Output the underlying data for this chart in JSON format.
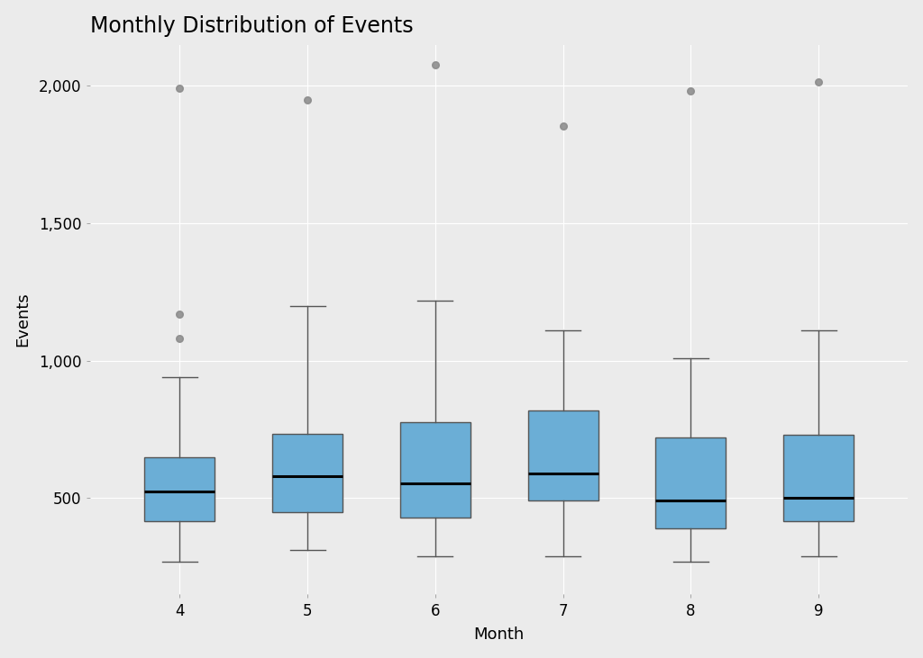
{
  "title": "Monthly Distribution of Events",
  "xlabel": "Month",
  "ylabel": "Events",
  "months": [
    4,
    5,
    6,
    7,
    8,
    9
  ],
  "box_stats": {
    "4": {
      "q1": 415,
      "median": 525,
      "q3": 650,
      "whisker_low": 270,
      "whisker_high": 940,
      "fliers": [
        1080,
        1170,
        1990
      ]
    },
    "5": {
      "q1": 450,
      "median": 580,
      "q3": 735,
      "whisker_low": 310,
      "whisker_high": 1200,
      "fliers": [
        1950
      ]
    },
    "6": {
      "q1": 430,
      "median": 555,
      "q3": 775,
      "whisker_low": 290,
      "whisker_high": 1220,
      "fliers": [
        2075
      ]
    },
    "7": {
      "q1": 490,
      "median": 590,
      "q3": 820,
      "whisker_low": 290,
      "whisker_high": 1110,
      "fliers": [
        1855
      ]
    },
    "8": {
      "q1": 390,
      "median": 490,
      "q3": 720,
      "whisker_low": 270,
      "whisker_high": 1010,
      "fliers": [
        1980
      ]
    },
    "9": {
      "q1": 415,
      "median": 500,
      "q3": 730,
      "whisker_low": 290,
      "whisker_high": 1110,
      "fliers": [
        2015
      ]
    }
  },
  "box_color": "#6BAED6",
  "box_edge_color": "#555555",
  "median_color": "#000000",
  "whisker_color": "#555555",
  "flier_color": "#888888",
  "background_color": "#EBEBEB",
  "panel_background": "#EBEBEB",
  "grid_color": "#FFFFFF",
  "title_fontsize": 17,
  "axis_label_fontsize": 13,
  "tick_fontsize": 12,
  "ylim": [
    150,
    2150
  ],
  "yticks": [
    500,
    1000,
    1500,
    2000
  ]
}
